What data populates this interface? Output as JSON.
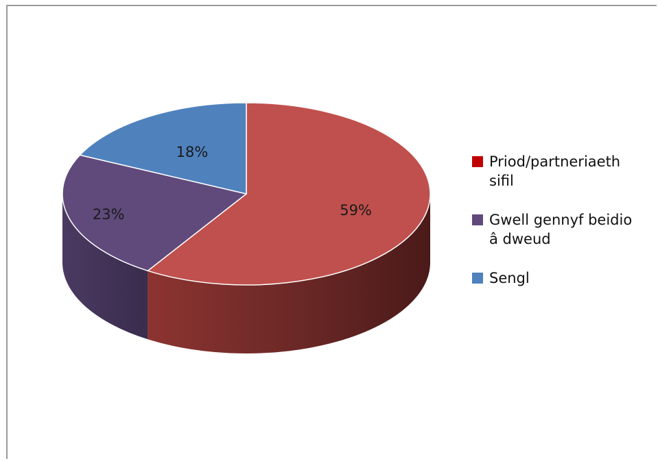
{
  "chart_data": {
    "type": "pie",
    "title": "",
    "categories": [
      "Priod/partneriaeth sifil",
      "Gwell gennyf beidio â dweud",
      "Sengl"
    ],
    "values": [
      59,
      23,
      18
    ],
    "value_labels": [
      "59%",
      "23%",
      "18%"
    ],
    "colors": [
      "#c0504d",
      "#604a7b",
      "#4f81bd"
    ],
    "legend_colors": [
      "#c00000",
      "#604a7b",
      "#4f81bd"
    ],
    "legend_position": "right",
    "style": "3d"
  }
}
